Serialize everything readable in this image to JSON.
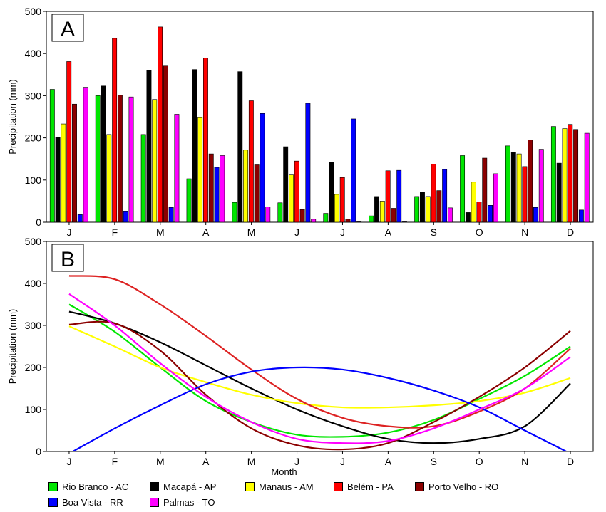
{
  "chart_data": [
    {
      "panel_label": "A",
      "type": "bar",
      "categories": [
        "J",
        "F",
        "M",
        "A",
        "M",
        "J",
        "J",
        "A",
        "S",
        "O",
        "N",
        "D"
      ],
      "ylabel": "Precipitation (mm)",
      "ylim": [
        0,
        500
      ],
      "yticks": [
        0,
        100,
        200,
        300,
        400,
        500
      ],
      "series": [
        {
          "name": "Rio Branco - AC",
          "color": "#00e600",
          "values": [
            315,
            300,
            208,
            103,
            47,
            46,
            21,
            15,
            61,
            158,
            181,
            227
          ]
        },
        {
          "name": "Macapá - AP",
          "color": "#000000",
          "values": [
            201,
            323,
            360,
            362,
            357,
            179,
            143,
            61,
            72,
            23,
            165,
            140
          ]
        },
        {
          "name": "Manaus - AM",
          "color": "#ffff00",
          "values": [
            233,
            208,
            291,
            248,
            171,
            112,
            66,
            50,
            61,
            95,
            162,
            222
          ]
        },
        {
          "name": "Belém - PA",
          "color": "#ff0000",
          "values": [
            381,
            436,
            463,
            389,
            288,
            145,
            106,
            122,
            138,
            48,
            132,
            232
          ]
        },
        {
          "name": "Porto Velho - RO",
          "color": "#8b0000",
          "values": [
            280,
            301,
            372,
            162,
            136,
            30,
            7,
            33,
            75,
            152,
            195,
            220
          ]
        },
        {
          "name": "Boa Vista - RR",
          "color": "#0000ff",
          "values": [
            18,
            25,
            35,
            130,
            258,
            282,
            245,
            123,
            125,
            40,
            35,
            29
          ]
        },
        {
          "name": "Palmas - TO",
          "color": "#ff00ff",
          "values": [
            320,
            297,
            256,
            158,
            36,
            7,
            1,
            1,
            34,
            115,
            173,
            211
          ]
        }
      ]
    },
    {
      "panel_label": "B",
      "type": "line",
      "x": [
        "J",
        "F",
        "M",
        "A",
        "M",
        "J",
        "J",
        "A",
        "S",
        "O",
        "N",
        "D"
      ],
      "xlabel": "Month",
      "ylabel": "Precipitation (mm)",
      "ylim": [
        0,
        500
      ],
      "yticks": [
        0,
        100,
        200,
        300,
        400,
        500
      ],
      "series": [
        {
          "name": "Rio Branco - AC",
          "color": "#00e600",
          "values": [
            350,
            285,
            200,
            120,
            70,
            40,
            35,
            45,
            75,
            125,
            180,
            250
          ]
        },
        {
          "name": "Macapá - AP",
          "color": "#000000",
          "values": [
            333,
            305,
            260,
            205,
            150,
            100,
            60,
            30,
            20,
            30,
            60,
            162
          ]
        },
        {
          "name": "Manaus - AM",
          "color": "#ffff00",
          "values": [
            298,
            250,
            200,
            165,
            135,
            115,
            105,
            105,
            110,
            120,
            140,
            175
          ]
        },
        {
          "name": "Belém - PA",
          "color": "#dd2222",
          "values": [
            418,
            410,
            350,
            275,
            195,
            125,
            80,
            60,
            60,
            95,
            150,
            245
          ]
        },
        {
          "name": "Porto Velho - RO",
          "color": "#8b0000",
          "values": [
            302,
            305,
            240,
            135,
            55,
            15,
            5,
            20,
            70,
            130,
            200,
            287
          ]
        },
        {
          "name": "Boa Vista - RR",
          "color": "#0000ff",
          "values": [
            -5,
            55,
            110,
            160,
            190,
            200,
            195,
            175,
            145,
            105,
            50,
            -5
          ]
        },
        {
          "name": "Palmas - TO",
          "color": "#ff00ff",
          "values": [
            375,
            300,
            210,
            130,
            70,
            30,
            20,
            25,
            55,
            100,
            150,
            225
          ]
        }
      ]
    }
  ]
}
